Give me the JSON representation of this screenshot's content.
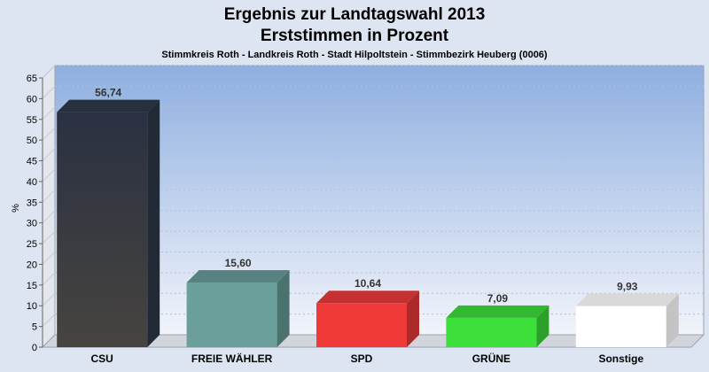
{
  "chart_data": {
    "type": "bar",
    "title": "Ergebnis zur Landtagswahl 2013",
    "subtitle": "Erststimmen in Prozent",
    "subtitle2": "Stimmkreis Roth - Landkreis Roth - Stadt Hilpoltstein - Stimmbezirk Heuberg (0006)",
    "ylabel": "%",
    "ylim": [
      0,
      65
    ],
    "yticks": [
      0,
      5,
      10,
      15,
      20,
      25,
      30,
      35,
      40,
      45,
      50,
      55,
      60,
      65
    ],
    "categories": [
      "CSU",
      "FREIE WÄHLER",
      "SPD",
      "GRÜNE",
      "Sonstige"
    ],
    "values": [
      56.74,
      15.6,
      10.64,
      7.09,
      9.93
    ],
    "value_labels": [
      "56,74",
      "15,60",
      "10,64",
      "7,09",
      "9,93"
    ],
    "colors": [
      "#2f3a4a",
      "#6a9f9b",
      "#f03a3a",
      "#3de03a",
      "#ffffff"
    ],
    "grid": true,
    "legend": "none"
  }
}
